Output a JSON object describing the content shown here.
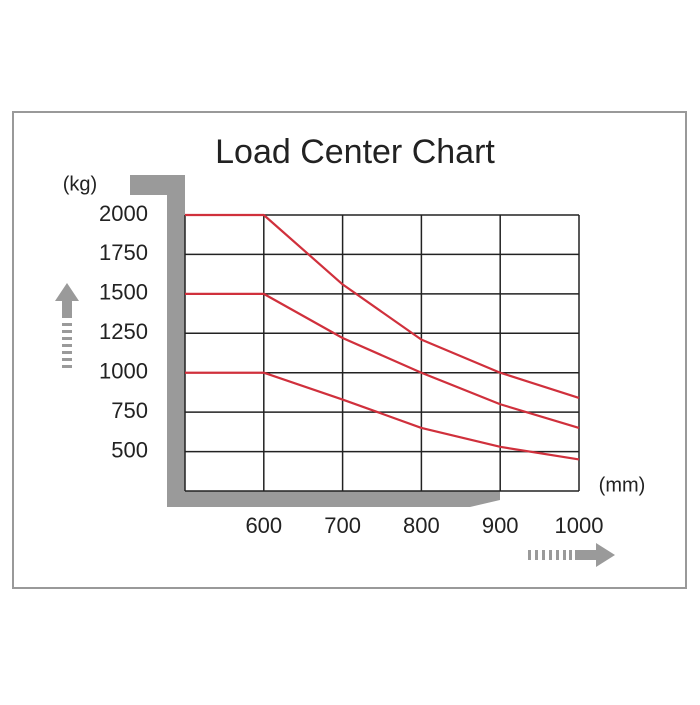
{
  "chart_data": {
    "type": "line",
    "title": "Load Center Chart",
    "y_label": "(kg)",
    "x_label": "(mm)",
    "x": [
      500,
      600,
      700,
      800,
      900,
      1000
    ],
    "series": [
      {
        "color": "#d0303c",
        "values": [
          2000,
          2000,
          1560,
          1210,
          1000,
          840
        ]
      },
      {
        "color": "#d0303c",
        "values": [
          1500,
          1500,
          1220,
          1000,
          800,
          650
        ]
      },
      {
        "color": "#d0303c",
        "values": [
          1000,
          1000,
          830,
          650,
          530,
          450
        ]
      }
    ],
    "xlim": [
      500,
      1000
    ],
    "xticks": [
      600,
      700,
      800,
      900,
      1000
    ],
    "ylim": [
      250,
      2000
    ],
    "yticks": [
      500,
      750,
      1000,
      1250,
      1500,
      1750,
      2000
    ],
    "grid": true
  }
}
